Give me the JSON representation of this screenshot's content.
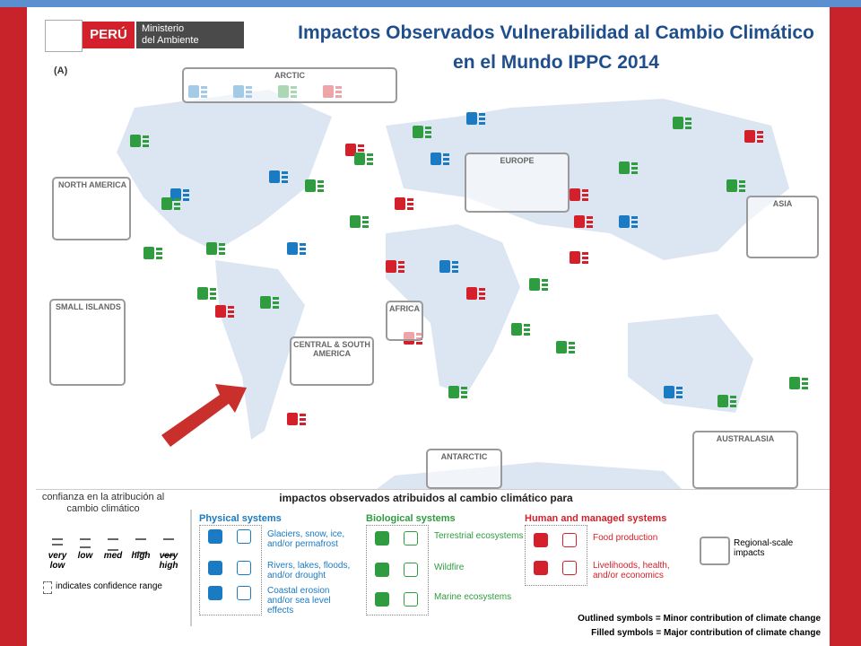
{
  "header": {
    "logo_country": "PERÚ",
    "logo_ministry_line1": "Ministerio",
    "logo_ministry_line2": "del Ambiente",
    "title_line1": "Impactos Observados Vulnerabilidad al Cambio Climático",
    "title_line2": "en el Mundo IPPC 2014"
  },
  "map": {
    "panel_label": "(A)",
    "regions": [
      "ARCTIC",
      "NORTH AMERICA",
      "EUROPE",
      "ASIA",
      "SMALL ISLANDS",
      "AFRICA",
      "CENTRAL & SOUTH AMERICA",
      "AUSTRALASIA",
      "ANTARCTIC"
    ]
  },
  "legend": {
    "confidence_caption": "confianza en la atribución al cambio climático",
    "confidence_levels": [
      "very low",
      "low",
      "med",
      "high",
      "very high"
    ],
    "range_note": "indicates confidence range",
    "impacts_caption": "impactos observados atribuidos al cambio climático para",
    "groups": [
      {
        "name": "Physical systems",
        "items": [
          "Glaciers, snow, ice, and/or permafrost",
          "Rivers, lakes, floods, and/or drought",
          "Coastal erosion and/or sea level effects"
        ]
      },
      {
        "name": "Biological systems",
        "items": [
          "Terrestrial ecosystems",
          "Wildfire",
          "Marine ecosystems"
        ]
      },
      {
        "name": "Human and managed systems",
        "items": [
          "Food production",
          "Livelihoods, health, and/or economics"
        ]
      }
    ],
    "regional_scale": "Regional-scale impacts",
    "outlined_note": "Outlined symbols = Minor contribution of climate change",
    "filled_note": "Filled symbols = Major contribution of climate change"
  }
}
